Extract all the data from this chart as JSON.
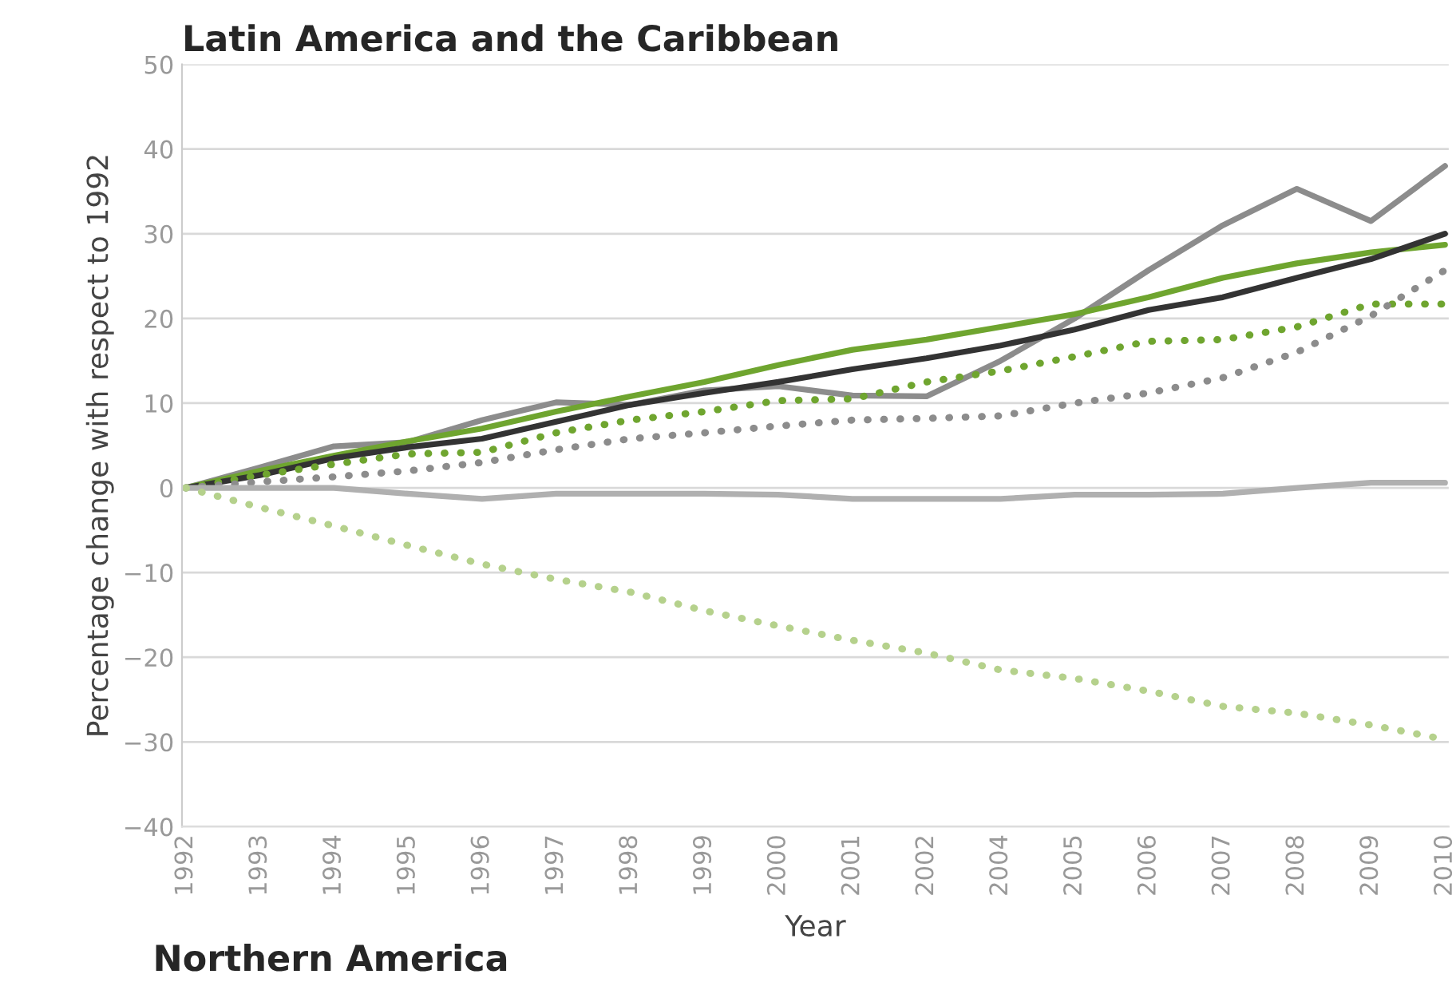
{
  "chart_data": {
    "type": "line",
    "title": "Latin America and the Caribbean",
    "xlabel": "Year",
    "ylabel": "Percentage change with respect to 1992",
    "categories": [
      "1992",
      "1993",
      "1994",
      "1995",
      "1996",
      "1997",
      "1998",
      "1999",
      "2000",
      "2001",
      "2002",
      "2004",
      "2005",
      "2006",
      "2007",
      "2008",
      "2009",
      "2010"
    ],
    "series": [
      {
        "color": "#8c8c8c",
        "line_style": "solid",
        "values": [
          0,
          2.4,
          4.9,
          5.4,
          8,
          10.1,
          9.8,
          11.5,
          12,
          10.9,
          10.8,
          15,
          20,
          25.7,
          31,
          35.3,
          31.5,
          38
        ]
      },
      {
        "color": "#6fa52f",
        "line_style": "solid",
        "values": [
          0,
          2,
          3.8,
          5.5,
          7,
          9,
          10.8,
          12.5,
          14.5,
          16.3,
          17.5,
          19,
          20.5,
          22.5,
          24.8,
          26.5,
          27.8,
          28.7
        ]
      },
      {
        "color": "#333333",
        "line_style": "solid",
        "values": [
          0,
          1.5,
          3.5,
          4.8,
          5.8,
          7.8,
          9.8,
          11.2,
          12.5,
          14,
          15.3,
          16.8,
          18.7,
          21,
          22.5,
          24.8,
          27,
          30
        ]
      },
      {
        "color": "#6fa52f",
        "line_style": "dotted",
        "values": [
          0,
          1.5,
          2.8,
          4,
          4.2,
          6.5,
          8,
          9,
          10.3,
          10.5,
          12.5,
          13.8,
          15.5,
          17.3,
          17.5,
          19,
          21.7,
          21.7
        ]
      },
      {
        "color": "#8c8c8c",
        "line_style": "dotted",
        "values": [
          0,
          0.7,
          1.3,
          2,
          3,
          4.5,
          5.8,
          6.5,
          7.3,
          8,
          8.2,
          8.5,
          10,
          11.2,
          13,
          16,
          20.3,
          25.7
        ]
      },
      {
        "color": "#b0b0b0",
        "line_style": "solid",
        "values": [
          0,
          0,
          0,
          -0.7,
          -1.3,
          -0.7,
          -0.7,
          -0.7,
          -0.8,
          -1.3,
          -1.3,
          -1.3,
          -0.8,
          -0.8,
          -0.7,
          0,
          0.6,
          0.6
        ]
      },
      {
        "color": "#b5d18c",
        "line_style": "dotted",
        "values": [
          0,
          -2.3,
          -4.5,
          -6.8,
          -9,
          -10.8,
          -12.3,
          -14.5,
          -16.3,
          -18,
          -19.5,
          -21.5,
          -22.5,
          -24,
          -25.8,
          -26.6,
          -28,
          -29.7
        ]
      }
    ],
    "ylim": [
      -40,
      50
    ],
    "yticks": [
      {
        "value": -40,
        "label": "−40"
      },
      {
        "value": -30,
        "label": "−30"
      },
      {
        "value": -20,
        "label": "−20"
      },
      {
        "value": -10,
        "label": "−10"
      },
      0,
      10,
      20,
      30,
      40,
      50
    ],
    "grid": "y",
    "annotations": [
      "Northern America"
    ]
  }
}
